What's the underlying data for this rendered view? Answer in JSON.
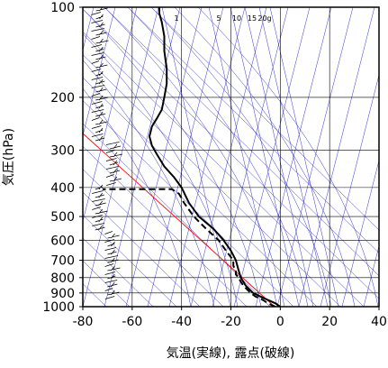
{
  "chart_data": {
    "type": "line",
    "title": "",
    "xlabel": "気温(実線), 露点(破線)",
    "ylabel": "気圧(hPa)",
    "xlim": [
      -80,
      40
    ],
    "ylim": [
      1000,
      100
    ],
    "yscale": "log",
    "x_ticks": [
      "-80",
      "-60",
      "-40",
      "-20",
      "0",
      "20",
      "40"
    ],
    "y_ticks": [
      "100",
      "200",
      "300",
      "400",
      "500",
      "600",
      "700",
      "800",
      "900",
      "1000"
    ],
    "grid": true,
    "mixing_ratio_labels": [
      "1",
      "5",
      "10",
      "15",
      "20g"
    ],
    "series": [
      {
        "points": [
          [
            0,
            1000
          ],
          [
            -2,
            975
          ],
          [
            -5,
            950
          ],
          [
            -8,
            925
          ],
          [
            -11,
            900
          ],
          [
            -14,
            850
          ],
          [
            -16,
            800
          ],
          [
            -17,
            750
          ],
          [
            -18,
            700
          ],
          [
            -20,
            650
          ],
          [
            -23,
            600
          ],
          [
            -27,
            550
          ],
          [
            -33,
            500
          ],
          [
            -37,
            450
          ],
          [
            -40,
            400
          ],
          [
            -43,
            370
          ],
          [
            -47,
            340
          ],
          [
            -50,
            310
          ],
          [
            -52,
            290
          ],
          [
            -53,
            270
          ],
          [
            -52,
            250
          ],
          [
            -50,
            235
          ],
          [
            -48,
            220
          ],
          [
            -47,
            200
          ],
          [
            -46,
            180
          ],
          [
            -46,
            160
          ],
          [
            -47,
            140
          ],
          [
            -47,
            125
          ],
          [
            -48,
            112
          ],
          [
            -49,
            105
          ],
          [
            -49,
            100
          ]
        ],
        "color": "#000000",
        "style": "solid"
      },
      {
        "points": [
          [
            -2,
            1000
          ],
          [
            -5,
            975
          ],
          [
            -7,
            950
          ],
          [
            -10,
            925
          ],
          [
            -12,
            900
          ],
          [
            -15,
            850
          ],
          [
            -17,
            800
          ],
          [
            -18,
            780
          ],
          [
            -18,
            760
          ],
          [
            -19,
            730
          ],
          [
            -19,
            700
          ],
          [
            -22,
            650
          ],
          [
            -25,
            600
          ],
          [
            -30,
            550
          ],
          [
            -35,
            500
          ],
          [
            -39,
            450
          ],
          [
            -41,
            420
          ],
          [
            -44,
            405
          ],
          [
            -72,
            405
          ]
        ],
        "color": "#000000",
        "style": "dashed"
      }
    ],
    "reference_lines": {
      "isotherm_color": "#3333cc",
      "red_line_color": "#ff0000"
    }
  }
}
